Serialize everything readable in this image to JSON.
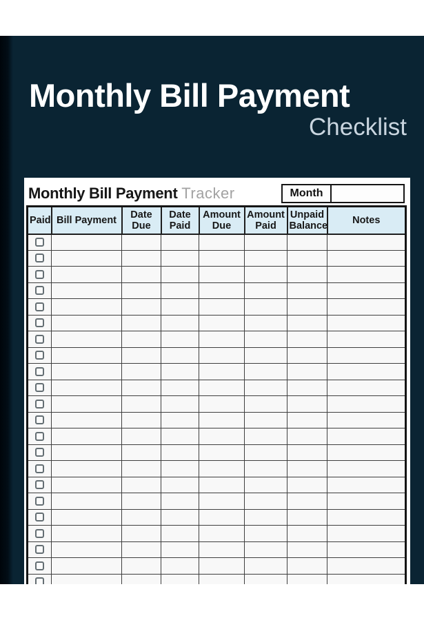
{
  "cover": {
    "title": "Monthly Bill Payment",
    "subtitle": "Checklist"
  },
  "panel": {
    "heading_bold": "Monthly Bill Payment",
    "heading_light": "Tracker",
    "month_label": "Month",
    "month_value": ""
  },
  "table": {
    "columns": [
      {
        "key": "paid",
        "label": "Paid"
      },
      {
        "key": "bill-payment",
        "label": "Bill Payment"
      },
      {
        "key": "date-due",
        "label": "Date Due"
      },
      {
        "key": "date-paid",
        "label": "Date Paid"
      },
      {
        "key": "amount-due",
        "label": "Amount Due"
      },
      {
        "key": "amount-paid",
        "label": "Amount Paid"
      },
      {
        "key": "unpaid-balance",
        "label": "Unpaid Balance"
      },
      {
        "key": "notes",
        "label": "Notes"
      }
    ],
    "row_count": 22,
    "cell_values": ""
  },
  "colors": {
    "cover_navy": "#0a2433",
    "spine_black": "#020d16",
    "header_blue": "#d9ecf5",
    "subtitle_gray": "#c9d5df",
    "tracker_gray": "#a2a2a2"
  }
}
